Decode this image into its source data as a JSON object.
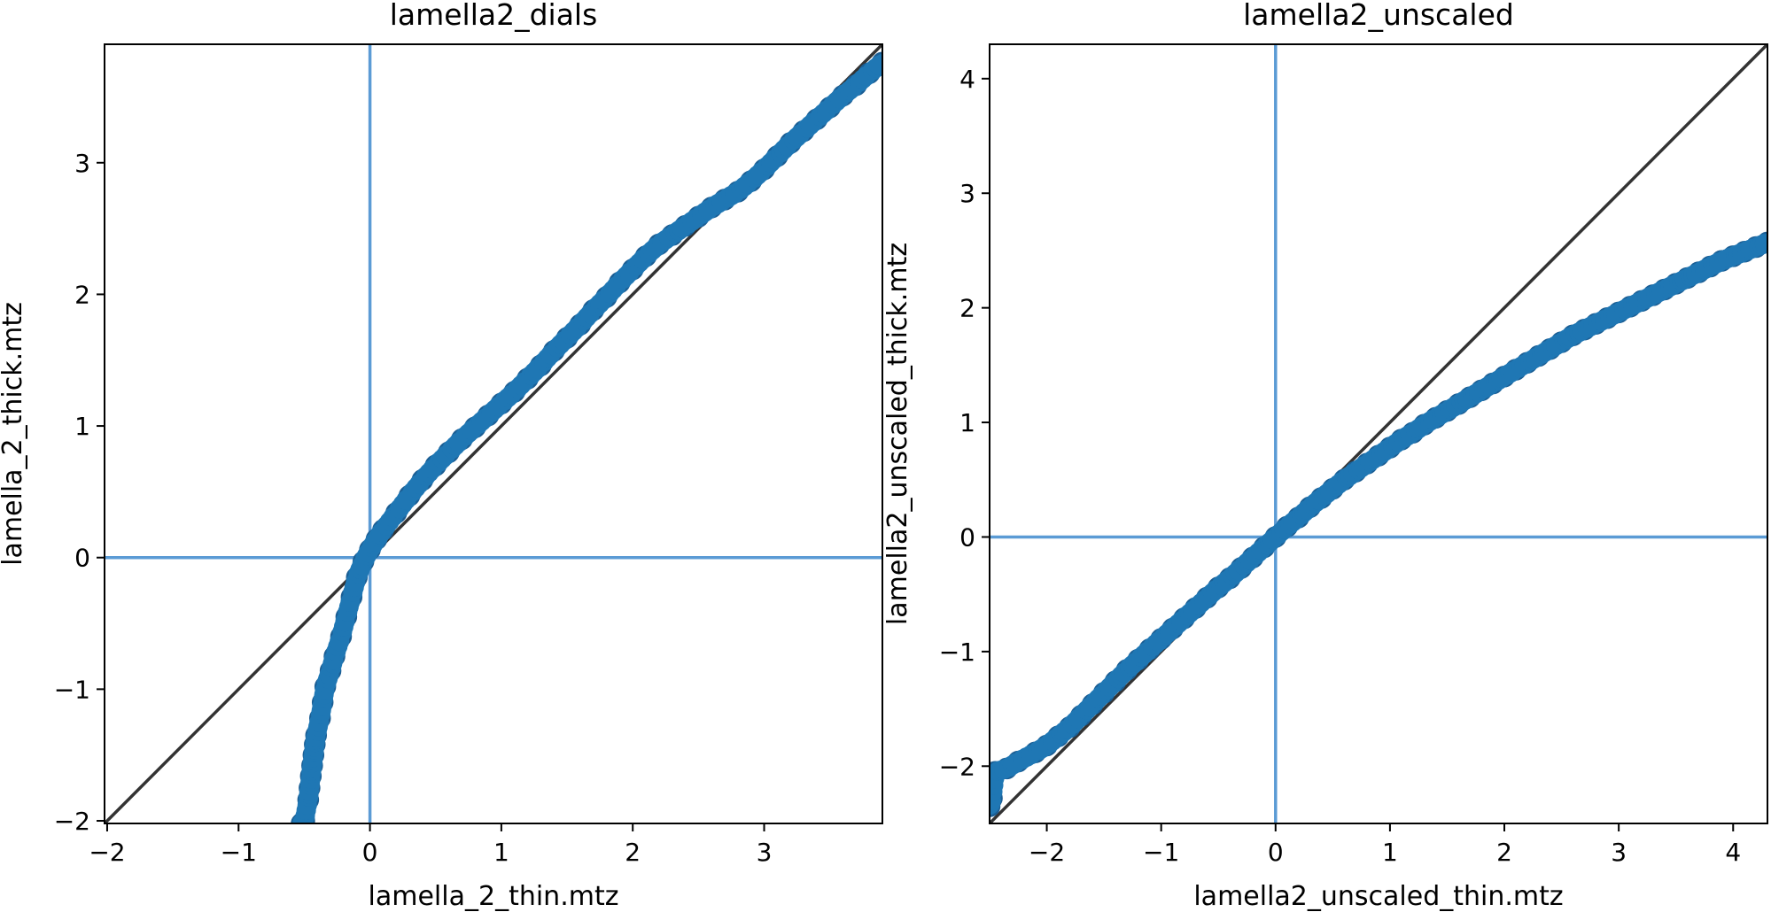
{
  "figure": {
    "background": "#ffffff",
    "marker_color": "#1f77b4",
    "reference_line_color": "#333333",
    "zero_line_color": "#5b9bd5"
  },
  "chart_data": [
    {
      "type": "scatter",
      "title": "lamella2_dials",
      "xlabel": "lamella_2_thin.mtz",
      "ylabel": "lamella_2_thick.mtz",
      "xlim": [
        -2.02,
        3.9
      ],
      "ylim": [
        -2.02,
        3.9
      ],
      "xticks": [
        -2,
        -1,
        0,
        1,
        2,
        3
      ],
      "xtick_labels": [
        "−2",
        "−1",
        "0",
        "1",
        "2",
        "3"
      ],
      "yticks": [
        -2,
        -1,
        0,
        1,
        2,
        3
      ],
      "ytick_labels": [
        "−2",
        "−1",
        "0",
        "1",
        "2",
        "3"
      ],
      "grid": false,
      "reference_line": "y = x",
      "zero_lines": {
        "x": 0,
        "y": 0
      },
      "series": [
        {
          "x": [
            -0.52,
            -0.5,
            -0.47,
            -0.46,
            -0.45,
            -0.44,
            -0.43,
            -0.42,
            -0.41,
            -0.38,
            -0.36,
            -0.34,
            -0.3,
            -0.27,
            -0.22,
            -0.18,
            -0.14,
            -0.1,
            -0.05,
            0.0,
            0.05,
            0.1,
            0.2,
            0.3,
            0.4,
            0.5,
            0.6,
            0.7,
            0.8,
            0.9,
            1.0,
            1.1,
            1.2,
            1.3,
            1.4,
            1.5,
            1.6,
            1.7,
            1.8,
            1.9,
            2.0,
            2.1,
            2.2,
            2.3,
            2.4,
            2.5,
            2.6,
            2.7,
            2.8,
            2.9,
            3.0,
            3.1,
            3.2,
            3.3,
            3.4,
            3.5,
            3.6,
            3.7,
            3.8,
            3.9
          ],
          "y": [
            -2.02,
            -2.0,
            -1.84,
            -1.75,
            -1.66,
            -1.58,
            -1.5,
            -1.42,
            -1.35,
            -1.22,
            -1.1,
            -0.98,
            -0.86,
            -0.75,
            -0.6,
            -0.45,
            -0.3,
            -0.15,
            -0.03,
            0.06,
            0.14,
            0.21,
            0.34,
            0.47,
            0.59,
            0.7,
            0.8,
            0.9,
            0.99,
            1.08,
            1.17,
            1.26,
            1.36,
            1.46,
            1.57,
            1.67,
            1.77,
            1.88,
            1.98,
            2.09,
            2.19,
            2.29,
            2.38,
            2.45,
            2.52,
            2.59,
            2.66,
            2.72,
            2.78,
            2.86,
            2.95,
            3.05,
            3.15,
            3.24,
            3.33,
            3.42,
            3.51,
            3.59,
            3.68,
            3.76
          ]
        }
      ]
    },
    {
      "type": "scatter",
      "title": "lamella2_unscaled",
      "xlabel": "lamella2_unscaled_thin.mtz",
      "ylabel": "lamella2_unscaled_thick.mtz",
      "xlim": [
        -2.5,
        4.3
      ],
      "ylim": [
        -2.5,
        4.3
      ],
      "xticks": [
        -2,
        -1,
        0,
        1,
        2,
        3,
        4
      ],
      "xtick_labels": [
        "−2",
        "−1",
        "0",
        "1",
        "2",
        "3",
        "4"
      ],
      "yticks": [
        -2,
        -1,
        0,
        1,
        2,
        3,
        4
      ],
      "ytick_labels": [
        "−2",
        "−1",
        "0",
        "1",
        "2",
        "3",
        "4"
      ],
      "grid": false,
      "reference_line": "y = x",
      "zero_lines": {
        "x": 0,
        "y": 0
      },
      "series": [
        {
          "x": [
            -2.5,
            -2.48,
            -2.45,
            -2.35,
            -2.25,
            -2.1,
            -2.0,
            -1.9,
            -1.8,
            -1.7,
            -1.6,
            -1.5,
            -1.4,
            -1.3,
            -1.2,
            -1.1,
            -1.0,
            -0.9,
            -0.8,
            -0.7,
            -0.6,
            -0.5,
            -0.4,
            -0.3,
            -0.2,
            -0.1,
            0.0,
            0.1,
            0.2,
            0.3,
            0.4,
            0.5,
            0.6,
            0.7,
            0.8,
            0.9,
            1.0,
            1.1,
            1.2,
            1.3,
            1.4,
            1.5,
            1.6,
            1.7,
            1.8,
            1.9,
            2.0,
            2.1,
            2.2,
            2.3,
            2.4,
            2.5,
            2.6,
            2.7,
            2.8,
            2.9,
            3.0,
            3.1,
            3.2,
            3.3,
            3.4,
            3.5,
            3.6,
            3.7,
            3.8,
            3.9,
            4.0,
            4.1,
            4.2,
            4.3
          ],
          "y": [
            -2.35,
            -2.28,
            -2.05,
            -2.02,
            -1.96,
            -1.88,
            -1.82,
            -1.74,
            -1.66,
            -1.56,
            -1.46,
            -1.36,
            -1.26,
            -1.16,
            -1.07,
            -0.98,
            -0.89,
            -0.8,
            -0.71,
            -0.62,
            -0.53,
            -0.44,
            -0.36,
            -0.27,
            -0.18,
            -0.09,
            0.0,
            0.09,
            0.17,
            0.26,
            0.34,
            0.42,
            0.5,
            0.57,
            0.64,
            0.71,
            0.78,
            0.85,
            0.91,
            0.98,
            1.04,
            1.1,
            1.16,
            1.22,
            1.28,
            1.34,
            1.4,
            1.46,
            1.52,
            1.58,
            1.64,
            1.7,
            1.76,
            1.81,
            1.86,
            1.91,
            1.96,
            2.01,
            2.06,
            2.11,
            2.16,
            2.21,
            2.26,
            2.31,
            2.36,
            2.41,
            2.45,
            2.49,
            2.53,
            2.57
          ]
        }
      ]
    }
  ]
}
